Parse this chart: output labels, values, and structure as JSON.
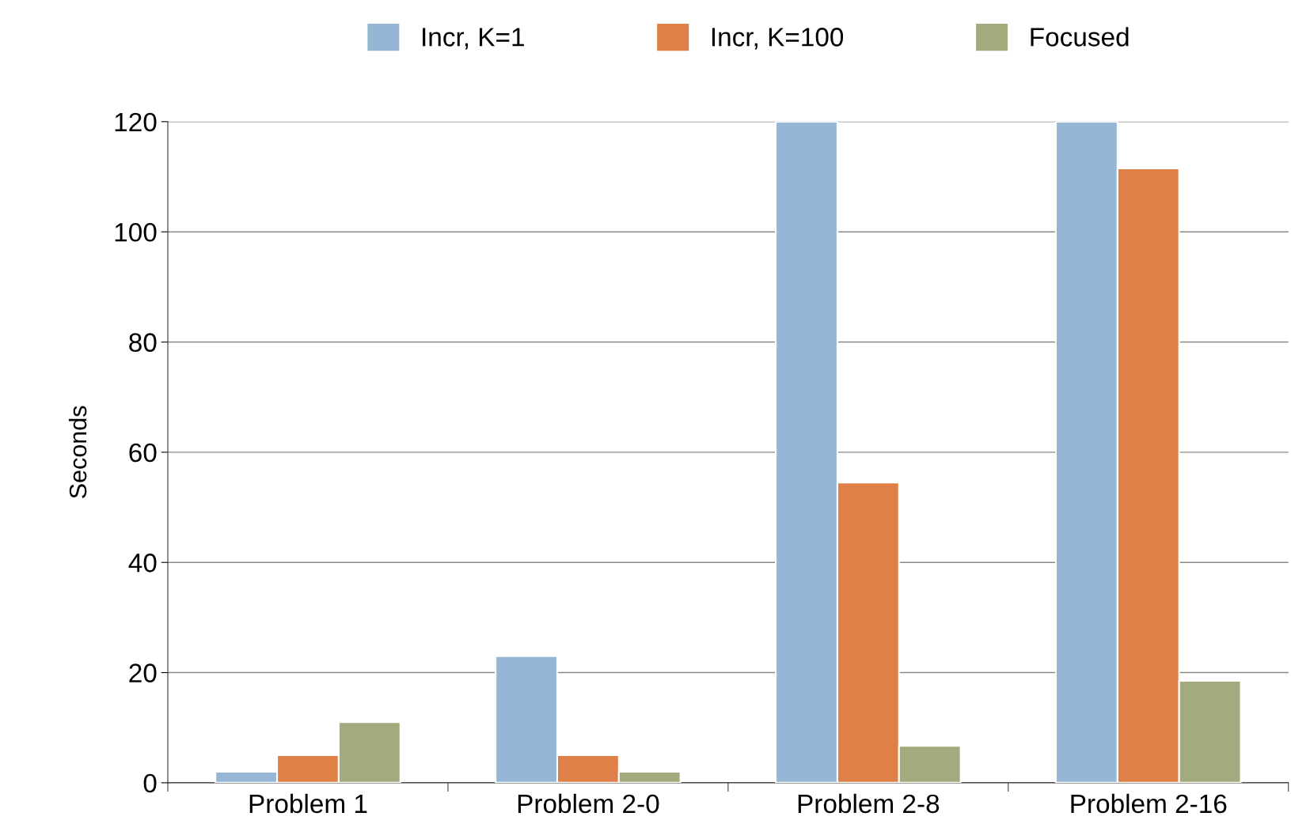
{
  "chart_data": {
    "type": "bar",
    "ylabel": "Seconds",
    "categories": [
      "Problem 1",
      "Problem 2-0",
      "Problem 2-8",
      "Problem 2-16"
    ],
    "series": [
      {
        "name": "Incr, K=1",
        "color": "#95b6d4",
        "values": [
          2,
          23,
          120,
          120
        ]
      },
      {
        "name": "Incr, K=100",
        "color": "#de8048",
        "values": [
          5,
          5,
          54.5,
          111.5
        ]
      },
      {
        "name": "Focused",
        "color": "#a3ab7e",
        "values": [
          11,
          2,
          6.7,
          18.5
        ]
      }
    ],
    "ylim": [
      0,
      120
    ],
    "yticks": [
      0,
      20,
      40,
      60,
      80,
      100,
      120
    ],
    "grid": "y",
    "legend": "top"
  }
}
